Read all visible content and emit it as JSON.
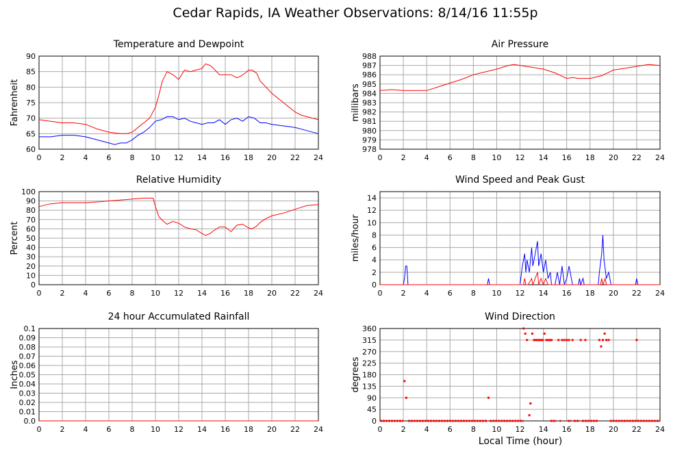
{
  "title": "Cedar Rapids, IA Weather Observations: 8/14/16 11:55p",
  "xlabel": "Local Time (hour)",
  "colors": {
    "primary": "#ff0000",
    "secondary": "#0000ff",
    "grid": "#a8a8a8",
    "frame": "#000000"
  },
  "x_ticks": [
    "0",
    "2",
    "4",
    "6",
    "8",
    "10",
    "12",
    "14",
    "16",
    "18",
    "20",
    "22",
    "24"
  ],
  "chart_data": [
    {
      "id": "temp",
      "type": "line",
      "title": "Temperature and Dewpoint",
      "ylabel": "Fahrenheit",
      "xlim": [
        0,
        24
      ],
      "ylim": [
        60,
        90
      ],
      "y_ticks": [
        "60",
        "65",
        "70",
        "75",
        "80",
        "85",
        "90"
      ],
      "series": [
        {
          "color": "#ff0000",
          "x": [
            0,
            1,
            2,
            3,
            4,
            5,
            6,
            7,
            7.5,
            8,
            8.5,
            9,
            9.5,
            10,
            10.3,
            10.6,
            11,
            11.5,
            12,
            12.5,
            13,
            13.5,
            14,
            14.3,
            14.7,
            15,
            15.5,
            16,
            16.5,
            17,
            17.3,
            17.7,
            18,
            18.3,
            18.7,
            19,
            19.5,
            20,
            20.5,
            21,
            21.5,
            22,
            22.5,
            23,
            23.5,
            24
          ],
          "y": [
            69.5,
            69,
            68.5,
            68.5,
            68,
            66.5,
            65.5,
            65,
            65,
            65.5,
            67,
            68.5,
            70,
            73.5,
            77.5,
            82,
            85,
            84,
            82.5,
            85.5,
            85,
            85.5,
            86,
            87.5,
            87,
            86,
            84,
            84,
            84,
            83,
            83.5,
            84.5,
            85.5,
            85.5,
            84.5,
            82,
            80,
            78,
            76.5,
            75,
            73.5,
            72,
            71,
            70.5,
            70,
            69.5
          ]
        },
        {
          "color": "#0000ff",
          "x": [
            0,
            1,
            2,
            3,
            4,
            5,
            6,
            6.5,
            7,
            7.5,
            8,
            8.5,
            9,
            9.5,
            10,
            10.5,
            11,
            11.5,
            12,
            12.5,
            13,
            13.5,
            14,
            14.5,
            15,
            15.5,
            16,
            16.5,
            17,
            17.5,
            18,
            18.5,
            19,
            19.5,
            20,
            21,
            22,
            23,
            24
          ],
          "y": [
            64,
            64,
            64.5,
            64.5,
            64,
            63,
            62,
            61.5,
            62,
            62,
            63,
            64.5,
            65.5,
            67,
            69,
            69.5,
            70.5,
            70.5,
            69.5,
            70,
            69,
            68.5,
            68,
            68.5,
            68.5,
            69.5,
            68,
            69.5,
            70,
            69,
            70.5,
            70,
            68.5,
            68.5,
            68,
            67.5,
            67,
            66,
            65
          ]
        }
      ]
    },
    {
      "id": "pressure",
      "type": "line",
      "title": "Air Pressure",
      "ylabel": "millibars",
      "xlim": [
        0,
        24
      ],
      "ylim": [
        978,
        988
      ],
      "y_ticks": [
        "978",
        "979",
        "980",
        "981",
        "982",
        "983",
        "984",
        "985",
        "986",
        "987",
        "988"
      ],
      "series": [
        {
          "color": "#ff0000",
          "x": [
            0,
            1,
            2,
            3,
            4,
            5,
            6,
            7,
            8,
            9,
            10,
            11,
            11.5,
            12,
            12.5,
            13,
            14,
            15,
            15.5,
            16,
            16.5,
            17,
            18,
            19,
            20,
            21,
            22,
            23,
            24
          ],
          "y": [
            984.3,
            984.4,
            984.3,
            984.3,
            984.3,
            984.7,
            985.1,
            985.5,
            986,
            986.3,
            986.6,
            987,
            987.1,
            987,
            986.9,
            986.8,
            986.6,
            986.2,
            985.9,
            985.6,
            985.7,
            985.6,
            985.6,
            985.9,
            986.5,
            986.7,
            986.9,
            987.1,
            987
          ]
        }
      ]
    },
    {
      "id": "rh",
      "type": "line",
      "title": "Relative Humidity",
      "ylabel": "Percent",
      "xlim": [
        0,
        24
      ],
      "ylim": [
        0,
        100
      ],
      "y_ticks": [
        "0",
        "10",
        "20",
        "30",
        "40",
        "50",
        "60",
        "70",
        "80",
        "90",
        "100"
      ],
      "series": [
        {
          "color": "#ff0000",
          "x": [
            0,
            1,
            2,
            3,
            4,
            5,
            6,
            7,
            8,
            9,
            9.8,
            10,
            10.3,
            10.7,
            11,
            11.5,
            12,
            12.5,
            13,
            13.5,
            14,
            14.3,
            14.7,
            15,
            15.5,
            16,
            16.5,
            17,
            17.5,
            18,
            18.3,
            18.7,
            19,
            19.5,
            20,
            21,
            22,
            23,
            24
          ],
          "y": [
            84,
            87,
            88,
            88,
            88,
            89,
            90,
            91,
            92,
            93,
            93,
            84,
            73,
            68,
            65,
            68,
            66,
            62,
            60,
            59,
            55,
            53,
            55,
            58,
            62,
            62,
            57,
            64,
            65,
            61,
            60,
            63,
            67,
            71,
            74,
            77,
            81,
            85,
            86
          ]
        }
      ]
    },
    {
      "id": "wind",
      "type": "line",
      "title": "Wind Speed and Peak Gust",
      "ylabel": "miles/hour",
      "xlim": [
        0,
        24
      ],
      "ylim": [
        0,
        15
      ],
      "y_ticks": [
        "0",
        "2",
        "4",
        "6",
        "8",
        "10",
        "12",
        "14"
      ],
      "series": [
        {
          "color": "#0000ff",
          "x": [
            0,
            2,
            2.1,
            2.2,
            2.3,
            2.4,
            9.2,
            9.3,
            9.4,
            12,
            12.2,
            12.4,
            12.5,
            12.6,
            12.8,
            13,
            13.1,
            13.3,
            13.5,
            13.6,
            13.8,
            14,
            14.2,
            14.4,
            14.6,
            14.7,
            15,
            15.2,
            15.4,
            15.6,
            15.8,
            16,
            16.2,
            16.5,
            17,
            17.1,
            17.2,
            17.4,
            17.5,
            18.7,
            18.8,
            19,
            19.1,
            19.2,
            19.4,
            19.6,
            19.8,
            20,
            21.9,
            22,
            22.1,
            24
          ],
          "y": [
            0,
            0,
            1,
            3,
            3,
            0,
            0,
            1,
            0,
            0,
            3,
            5,
            2,
            4,
            2,
            6,
            3,
            5,
            7,
            3,
            5,
            2,
            4,
            1,
            2,
            0,
            0,
            2,
            0,
            3,
            0,
            1,
            3,
            0,
            0,
            1,
            0,
            1,
            0,
            0,
            2,
            5,
            8,
            4,
            1,
            2,
            0,
            0,
            0,
            1,
            0,
            0
          ]
        },
        {
          "color": "#ff0000",
          "x": [
            0,
            12.3,
            12.4,
            12.5,
            12.7,
            13,
            13.1,
            13.3,
            13.5,
            13.6,
            13.8,
            14,
            14.2,
            14.4,
            14.5,
            18.9,
            19,
            19.1,
            19.3,
            19.4,
            19.6,
            24
          ],
          "y": [
            0,
            0,
            1,
            0,
            0,
            1,
            0,
            1,
            2,
            0,
            1,
            0,
            1,
            0,
            0,
            0,
            1,
            0,
            1,
            0,
            0,
            0
          ]
        }
      ]
    },
    {
      "id": "rain",
      "type": "line",
      "title": "24 hour Accumulated Rainfall",
      "ylabel": "Inches",
      "xlim": [
        0,
        24
      ],
      "ylim": [
        0,
        0.1
      ],
      "y_ticks": [
        "0.0",
        "0.01",
        "0.02",
        "0.03",
        "0.04",
        "0.05",
        "0.06",
        "0.07",
        "0.08",
        "0.09",
        "0.1"
      ],
      "series": [
        {
          "color": "#ff0000",
          "x": [
            0,
            24
          ],
          "y": [
            0,
            0
          ]
        }
      ]
    },
    {
      "id": "winddir",
      "type": "scatter",
      "title": "Wind Direction",
      "ylabel": "degrees",
      "xlim": [
        0,
        24
      ],
      "ylim": [
        0,
        360
      ],
      "y_ticks": [
        "0",
        "45",
        "90",
        "135",
        "180",
        "225",
        "270",
        "315",
        "360"
      ],
      "series": [
        {
          "color": "#ff0000",
          "points": [
            [
              2.1,
              155
            ],
            [
              2.25,
              90
            ],
            [
              9.3,
              90
            ],
            [
              12.3,
              360
            ],
            [
              12.45,
              340
            ],
            [
              12.6,
              315
            ],
            [
              12.8,
              22
            ],
            [
              12.9,
              68
            ],
            [
              13.05,
              340
            ],
            [
              13.2,
              315
            ],
            [
              13.35,
              315
            ],
            [
              13.5,
              315
            ],
            [
              13.65,
              315
            ],
            [
              13.8,
              315
            ],
            [
              13.95,
              315
            ],
            [
              14.1,
              340
            ],
            [
              14.25,
              315
            ],
            [
              14.4,
              315
            ],
            [
              14.55,
              315
            ],
            [
              14.7,
              315
            ],
            [
              15.3,
              315
            ],
            [
              15.6,
              315
            ],
            [
              15.8,
              315
            ],
            [
              16.0,
              315
            ],
            [
              16.2,
              315
            ],
            [
              16.5,
              315
            ],
            [
              17.2,
              315
            ],
            [
              17.6,
              315
            ],
            [
              18.8,
              315
            ],
            [
              18.95,
              290
            ],
            [
              19.1,
              315
            ],
            [
              19.25,
              340
            ],
            [
              19.4,
              315
            ],
            [
              19.6,
              315
            ],
            [
              22.0,
              315
            ]
          ],
          "zero_spans": [
            [
              0,
              2.0
            ],
            [
              2.4,
              9.2
            ],
            [
              9.4,
              12.3
            ],
            [
              14.6,
              15.1
            ],
            [
              15.4,
              15.5
            ],
            [
              16.1,
              16.4
            ],
            [
              16.6,
              17.1
            ],
            [
              17.3,
              18.7
            ],
            [
              19.7,
              24
            ]
          ]
        }
      ]
    }
  ]
}
